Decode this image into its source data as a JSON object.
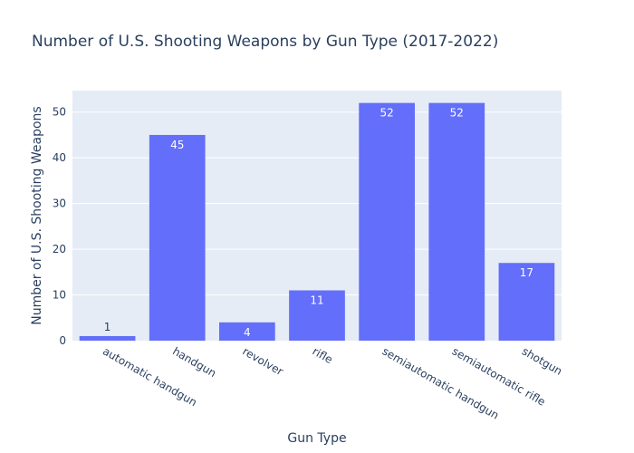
{
  "chart_data": {
    "type": "bar",
    "title": "Number of U.S. Shooting Weapons by Gun Type (2017-2022)",
    "xlabel": "Gun Type",
    "ylabel": "Number of U.S. Shooting Weapons",
    "categories": [
      "automatic handgun",
      "handgun",
      "revolver",
      "rifle",
      "semiautomatic handgun",
      "semiautomatic rifle",
      "shotgun"
    ],
    "values": [
      1,
      45,
      4,
      11,
      52,
      52,
      17
    ],
    "ylim": [
      0,
      54.7
    ],
    "yticks": [
      0,
      10,
      20,
      30,
      40,
      50
    ],
    "grid": true,
    "colors": {
      "bar": "#636efa",
      "plot_bg": "#e5ecf6",
      "grid": "#ffffff",
      "text": "#2a3f5f",
      "inside_label": "#ffffff"
    }
  }
}
